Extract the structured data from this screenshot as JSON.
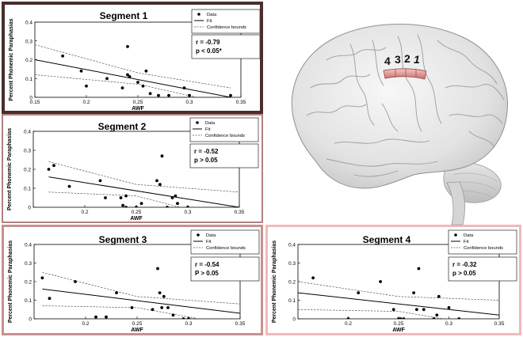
{
  "brain": {
    "segment_numbers": [
      "4",
      "3",
      "2",
      "1"
    ]
  },
  "chart_data": [
    {
      "type": "scatter",
      "title": "Segment 1",
      "xlabel": "AWF",
      "ylabel": "Percent Phonemic Paraphasias",
      "xlim": [
        0.15,
        0.35
      ],
      "ylim": [
        0,
        0.4
      ],
      "xticks": [
        "0.15",
        "0.2",
        "0.25",
        "0.3",
        "0.35"
      ],
      "yticks": [
        "0",
        "0.1",
        "0.2",
        "0.3",
        "0.4"
      ],
      "legend": [
        "Data",
        "Fit",
        "Confidence bounds"
      ],
      "legend_position": "top-right",
      "stats": [
        "r  = -0.79",
        "p < 0.05*"
      ],
      "points": [
        [
          0.177,
          0.22
        ],
        [
          0.195,
          0.14
        ],
        [
          0.2,
          0.06
        ],
        [
          0.22,
          0.1
        ],
        [
          0.235,
          0.05
        ],
        [
          0.24,
          0.27
        ],
        [
          0.24,
          0.12
        ],
        [
          0.242,
          0.11
        ],
        [
          0.25,
          0.08
        ],
        [
          0.255,
          0.06
        ],
        [
          0.258,
          0.14
        ],
        [
          0.262,
          0.02
        ],
        [
          0.27,
          0.01
        ],
        [
          0.28,
          0.01
        ],
        [
          0.295,
          0.05
        ],
        [
          0.3,
          0.01
        ],
        [
          0.34,
          0.01
        ]
      ],
      "fit": [
        [
          0.15,
          0.2
        ],
        [
          0.34,
          0.0
        ]
      ],
      "bound_upper": [
        [
          0.15,
          0.28
        ],
        [
          0.25,
          0.13
        ],
        [
          0.34,
          0.05
        ]
      ],
      "bound_lower": [
        [
          0.15,
          0.12
        ],
        [
          0.25,
          0.07
        ],
        [
          0.34,
          -0.04
        ]
      ]
    },
    {
      "type": "scatter",
      "title": "Segment 2",
      "xlabel": "AWF",
      "ylabel": "Percent Phonemic Paraphasias",
      "xlim": [
        0.15,
        0.35
      ],
      "ylim": [
        0,
        0.4
      ],
      "xticks": [
        "0.2",
        "0.25",
        "0.3",
        "0.35"
      ],
      "yticks": [
        "0",
        "0.1",
        "0.2",
        "0.3",
        "0.4"
      ],
      "legend": [
        "Data",
        "Fit",
        "Confidence bounds"
      ],
      "legend_position": "top-right",
      "stats": [
        "r  = -0.52",
        "p > 0.05"
      ],
      "points": [
        [
          0.165,
          0.2
        ],
        [
          0.17,
          0.22
        ],
        [
          0.185,
          0.11
        ],
        [
          0.215,
          0.14
        ],
        [
          0.22,
          0.05
        ],
        [
          0.235,
          0.05
        ],
        [
          0.237,
          0.01
        ],
        [
          0.24,
          0.0
        ],
        [
          0.24,
          0.06
        ],
        [
          0.25,
          0.0
        ],
        [
          0.255,
          0.02
        ],
        [
          0.27,
          0.14
        ],
        [
          0.273,
          0.12
        ],
        [
          0.275,
          0.27
        ],
        [
          0.28,
          0.0
        ],
        [
          0.285,
          0.05
        ],
        [
          0.288,
          0.06
        ],
        [
          0.29,
          0.02
        ],
        [
          0.3,
          0.0
        ]
      ],
      "fit": [
        [
          0.165,
          0.16
        ],
        [
          0.35,
          0.0
        ]
      ],
      "bound_upper": [
        [
          0.165,
          0.24
        ],
        [
          0.25,
          0.12
        ],
        [
          0.35,
          0.08
        ]
      ],
      "bound_lower": [
        [
          0.165,
          0.08
        ],
        [
          0.25,
          0.06
        ],
        [
          0.35,
          -0.08
        ]
      ]
    },
    {
      "type": "scatter",
      "title": "Segment 3",
      "xlabel": "AWF",
      "ylabel": "Percent Phonemic Paraphasias",
      "xlim": [
        0.15,
        0.35
      ],
      "ylim": [
        0,
        0.4
      ],
      "xticks": [
        "0.2",
        "0.25",
        "0.3",
        "0.35"
      ],
      "yticks": [
        "0",
        "0.1",
        "0.2",
        "0.3",
        "0.4"
      ],
      "legend": [
        "Data",
        "Fit",
        "Confidence bounds"
      ],
      "legend_position": "top-right",
      "stats": [
        "r  = -0.54",
        "P > 0.05"
      ],
      "points": [
        [
          0.158,
          0.22
        ],
        [
          0.165,
          0.11
        ],
        [
          0.19,
          0.2
        ],
        [
          0.21,
          0.01
        ],
        [
          0.22,
          0.01
        ],
        [
          0.23,
          0.14
        ],
        [
          0.245,
          0.06
        ],
        [
          0.265,
          0.05
        ],
        [
          0.27,
          0.27
        ],
        [
          0.272,
          0.14
        ],
        [
          0.274,
          0.06
        ],
        [
          0.276,
          0.12
        ],
        [
          0.28,
          0.06
        ],
        [
          0.285,
          0.02
        ],
        [
          0.295,
          0.0
        ],
        [
          0.3,
          0.0
        ],
        [
          0.3,
          0.0
        ]
      ],
      "fit": [
        [
          0.158,
          0.16
        ],
        [
          0.35,
          0.03
        ]
      ],
      "bound_upper": [
        [
          0.158,
          0.25
        ],
        [
          0.25,
          0.12
        ],
        [
          0.35,
          0.08
        ]
      ],
      "bound_lower": [
        [
          0.158,
          0.07
        ],
        [
          0.25,
          0.06
        ],
        [
          0.35,
          -0.04
        ]
      ]
    },
    {
      "type": "scatter",
      "title": "Segment 4",
      "xlabel": "AWF",
      "ylabel": "Percent Phonemic Paraphasias",
      "xlim": [
        0.15,
        0.35
      ],
      "ylim": [
        0,
        0.4
      ],
      "xticks": [
        "0.2",
        "0.25",
        "0.3",
        "0.35"
      ],
      "yticks": [
        "0",
        "0.1",
        "0.2",
        "0.3",
        "0.4"
      ],
      "legend": [
        "Data",
        "Fit",
        "Confidence bounds"
      ],
      "legend_position": "top-right",
      "stats": [
        "r  = -0.32",
        "p > 0.05"
      ],
      "points": [
        [
          0.165,
          0.22
        ],
        [
          0.2,
          0.0
        ],
        [
          0.21,
          0.14
        ],
        [
          0.232,
          0.2
        ],
        [
          0.245,
          0.05
        ],
        [
          0.25,
          0.0
        ],
        [
          0.252,
          0.0
        ],
        [
          0.255,
          0.0
        ],
        [
          0.265,
          0.14
        ],
        [
          0.268,
          0.05
        ],
        [
          0.27,
          0.27
        ],
        [
          0.275,
          0.05
        ],
        [
          0.285,
          0.0
        ],
        [
          0.288,
          0.02
        ],
        [
          0.29,
          0.12
        ],
        [
          0.3,
          0.06
        ],
        [
          0.31,
          0.0
        ]
      ],
      "fit": [
        [
          0.15,
          0.14
        ],
        [
          0.35,
          0.02
        ]
      ],
      "bound_upper": [
        [
          0.15,
          0.2
        ],
        [
          0.25,
          0.12
        ],
        [
          0.35,
          0.1
        ]
      ],
      "bound_lower": [
        [
          0.15,
          0.05
        ],
        [
          0.25,
          0.04
        ],
        [
          0.35,
          -0.05
        ]
      ]
    }
  ]
}
